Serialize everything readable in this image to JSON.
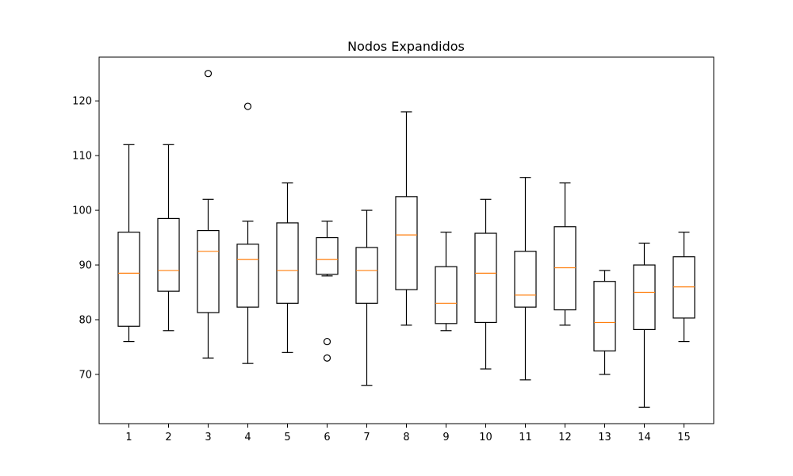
{
  "chart_data": {
    "type": "box",
    "title": "Nodos Expandidos",
    "xlabel": "",
    "ylabel": "",
    "ylim": [
      61,
      128
    ],
    "y_ticks": [
      70,
      80,
      90,
      100,
      110,
      120
    ],
    "categories": [
      "1",
      "2",
      "3",
      "4",
      "5",
      "6",
      "7",
      "8",
      "9",
      "10",
      "11",
      "12",
      "13",
      "14",
      "15"
    ],
    "boxes": [
      {
        "whisker_low": 76,
        "q1": 78.8,
        "median": 88.5,
        "q3": 96,
        "whisker_high": 112,
        "outliers": []
      },
      {
        "whisker_low": 78,
        "q1": 85.2,
        "median": 89,
        "q3": 98.5,
        "whisker_high": 112,
        "outliers": []
      },
      {
        "whisker_low": 73,
        "q1": 81.3,
        "median": 92.5,
        "q3": 96.3,
        "whisker_high": 102,
        "outliers": [
          125
        ]
      },
      {
        "whisker_low": 72,
        "q1": 82.3,
        "median": 91,
        "q3": 93.8,
        "whisker_high": 98,
        "outliers": [
          119
        ]
      },
      {
        "whisker_low": 74,
        "q1": 83,
        "median": 89,
        "q3": 97.7,
        "whisker_high": 105,
        "outliers": []
      },
      {
        "whisker_low": 88,
        "q1": 88.3,
        "median": 91,
        "q3": 95,
        "whisker_high": 98,
        "outliers": [
          76,
          73
        ]
      },
      {
        "whisker_low": 68,
        "q1": 83,
        "median": 89,
        "q3": 93.2,
        "whisker_high": 100,
        "outliers": []
      },
      {
        "whisker_low": 79,
        "q1": 85.5,
        "median": 95.5,
        "q3": 102.5,
        "whisker_high": 118,
        "outliers": []
      },
      {
        "whisker_low": 78,
        "q1": 79.3,
        "median": 83,
        "q3": 89.7,
        "whisker_high": 96,
        "outliers": []
      },
      {
        "whisker_low": 71,
        "q1": 79.5,
        "median": 88.5,
        "q3": 95.8,
        "whisker_high": 102,
        "outliers": []
      },
      {
        "whisker_low": 69,
        "q1": 82.3,
        "median": 84.5,
        "q3": 92.5,
        "whisker_high": 106,
        "outliers": []
      },
      {
        "whisker_low": 79,
        "q1": 81.8,
        "median": 89.5,
        "q3": 97,
        "whisker_high": 105,
        "outliers": []
      },
      {
        "whisker_low": 70,
        "q1": 74.3,
        "median": 79.5,
        "q3": 87,
        "whisker_high": 89,
        "outliers": []
      },
      {
        "whisker_low": 64,
        "q1": 78.2,
        "median": 85,
        "q3": 90,
        "whisker_high": 94,
        "outliers": []
      },
      {
        "whisker_low": 76,
        "q1": 80.3,
        "median": 86,
        "q3": 91.5,
        "whisker_high": 96,
        "outliers": []
      }
    ],
    "grid": false,
    "legend": "none",
    "colors": {
      "box": "#000000",
      "median": "#ff7f0e",
      "outlier": "#000000",
      "axes": "#000000",
      "background": "#ffffff"
    }
  }
}
